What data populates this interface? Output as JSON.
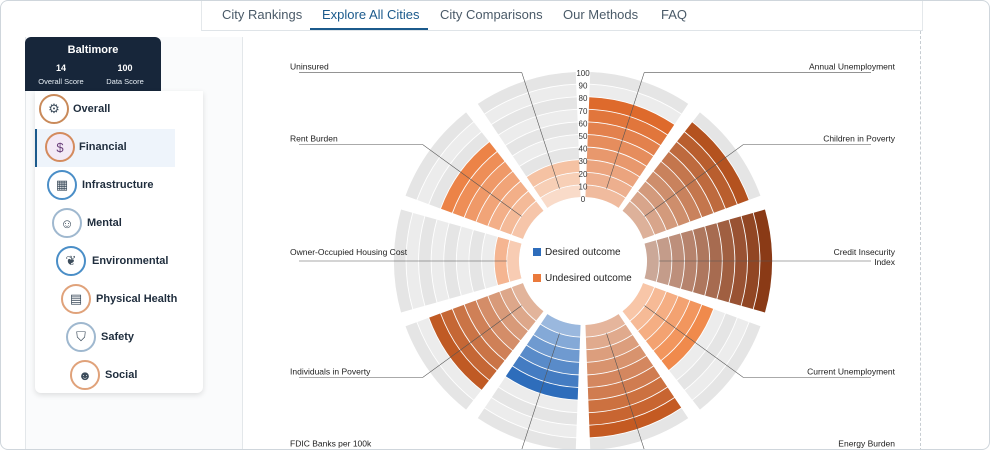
{
  "nav": {
    "tabs": [
      {
        "label": "City Rankings"
      },
      {
        "label": "Explore All Cities"
      },
      {
        "label": "City Comparisons"
      },
      {
        "label": "Our Methods"
      },
      {
        "label": "FAQ"
      }
    ],
    "active_tab": "Explore All Cities"
  },
  "city_card": {
    "city": "Baltimore",
    "overall_score": "14",
    "overall_label": "Overall Score",
    "data_score": "100",
    "data_label": "Data Score"
  },
  "sidebar": {
    "items": [
      {
        "label": "Overall",
        "icon": "gear-icon",
        "ring": "#c98a5a"
      },
      {
        "label": "Financial",
        "icon": "dollar-icon",
        "ring": "#d48b5e"
      },
      {
        "label": "Infrastructure",
        "icon": "building-icon",
        "ring": "#4a8ec7"
      },
      {
        "label": "Mental",
        "icon": "brain-icon",
        "ring": "#9fb8cf"
      },
      {
        "label": "Environmental",
        "icon": "leaf-icon",
        "ring": "#4a8ec7"
      },
      {
        "label": "Physical Health",
        "icon": "clipboard-icon",
        "ring": "#e0a27a"
      },
      {
        "label": "Safety",
        "icon": "shield-icon",
        "ring": "#9fb8cf"
      },
      {
        "label": "Social",
        "icon": "people-icon",
        "ring": "#e0a27a"
      }
    ],
    "active": "Financial"
  },
  "legend": {
    "desired": "Desired outcome",
    "undesired": "Undesired outcome",
    "desired_color": "#2e6dbb",
    "undesired_color": "#ea7a3c"
  },
  "chart_data": {
    "type": "polar-bar",
    "r_ticks": [
      "0",
      "10",
      "20",
      "30",
      "40",
      "50",
      "60",
      "70",
      "80",
      "90",
      "100"
    ],
    "rlim": [
      0,
      100
    ],
    "categories": [
      {
        "name": "Annual Unemployment",
        "value": 78,
        "outcome": "undesired",
        "color": "#de6a2c"
      },
      {
        "name": "Children in Poverty",
        "value": 88,
        "outcome": "undesired",
        "color": "#b4521f"
      },
      {
        "name": "Credit Insecurity Index",
        "value": 100,
        "outcome": "undesired",
        "color": "#8a3a16"
      },
      {
        "name": "Current Unemployment",
        "value": 58,
        "outcome": "undesired",
        "color": "#f08a4c"
      },
      {
        "name": "Energy Burden",
        "value": 90,
        "outcome": "undesired",
        "color": "#c45a22"
      },
      {
        "name": "FDIC Banks per 100k",
        "value": 55,
        "outcome": "desired",
        "color": "#2e6dbb"
      },
      {
        "name": "Individuals in Poverty",
        "value": 84,
        "outcome": "undesired",
        "color": "#c05a24"
      },
      {
        "name": "Owner-Occupied Housing Cost",
        "value": 20,
        "outcome": "undesired",
        "color": "#f5b591"
      },
      {
        "name": "Rent Burden",
        "value": 70,
        "outcome": "undesired",
        "color": "#ec8347"
      },
      {
        "name": "Uninsured",
        "value": 30,
        "outcome": "undesired",
        "color": "#f5c2a3"
      }
    ]
  }
}
